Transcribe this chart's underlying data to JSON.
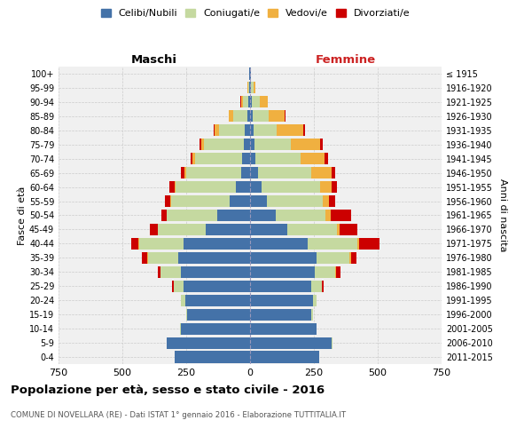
{
  "age_groups": [
    "0-4",
    "5-9",
    "10-14",
    "15-19",
    "20-24",
    "25-29",
    "30-34",
    "35-39",
    "40-44",
    "45-49",
    "50-54",
    "55-59",
    "60-64",
    "65-69",
    "70-74",
    "75-79",
    "80-84",
    "85-89",
    "90-94",
    "95-99",
    "100+"
  ],
  "birth_years": [
    "2011-2015",
    "2006-2010",
    "2001-2005",
    "1996-2000",
    "1991-1995",
    "1986-1990",
    "1981-1985",
    "1976-1980",
    "1971-1975",
    "1966-1970",
    "1961-1965",
    "1956-1960",
    "1951-1955",
    "1946-1950",
    "1941-1945",
    "1936-1940",
    "1931-1935",
    "1926-1930",
    "1921-1925",
    "1916-1920",
    "≤ 1915"
  ],
  "male": {
    "celibi": [
      295,
      325,
      270,
      245,
      255,
      260,
      270,
      280,
      260,
      175,
      130,
      80,
      55,
      35,
      30,
      25,
      20,
      12,
      8,
      3,
      2
    ],
    "coniugati": [
      1,
      2,
      3,
      5,
      15,
      40,
      80,
      120,
      175,
      185,
      195,
      230,
      235,
      215,
      185,
      155,
      100,
      55,
      20,
      5,
      2
    ],
    "vedovi": [
      0,
      0,
      0,
      0,
      0,
      0,
      1,
      2,
      2,
      2,
      3,
      3,
      5,
      8,
      10,
      12,
      18,
      15,
      8,
      2,
      0
    ],
    "divorziati": [
      0,
      0,
      0,
      0,
      2,
      5,
      10,
      20,
      30,
      30,
      20,
      22,
      20,
      12,
      8,
      5,
      3,
      2,
      1,
      0,
      0
    ]
  },
  "female": {
    "nubili": [
      270,
      320,
      260,
      240,
      245,
      240,
      255,
      260,
      225,
      145,
      100,
      65,
      45,
      30,
      22,
      18,
      15,
      12,
      8,
      3,
      2
    ],
    "coniugate": [
      1,
      2,
      2,
      5,
      15,
      40,
      80,
      130,
      195,
      195,
      195,
      220,
      230,
      210,
      175,
      140,
      90,
      60,
      30,
      10,
      2
    ],
    "vedove": [
      0,
      0,
      0,
      0,
      0,
      2,
      3,
      5,
      8,
      10,
      20,
      25,
      45,
      80,
      95,
      115,
      105,
      65,
      30,
      8,
      1
    ],
    "divorziate": [
      0,
      0,
      0,
      0,
      2,
      5,
      15,
      20,
      80,
      70,
      80,
      25,
      22,
      15,
      12,
      10,
      5,
      2,
      1,
      0,
      0
    ]
  },
  "colors": {
    "celibi": "#4472a8",
    "coniugati": "#c5d9a0",
    "vedovi": "#f0b040",
    "divorziati": "#cc0000"
  },
  "xlim": 750,
  "title": "Popolazione per età, sesso e stato civile - 2016",
  "subtitle": "COMUNE DI NOVELLARA (RE) - Dati ISTAT 1° gennaio 2016 - Elaborazione TUTTITALIA.IT",
  "maschi_label": "Maschi",
  "femmine_label": "Femmine",
  "ylabel_left": "Fasce di età",
  "ylabel_right": "Anni di nascita",
  "legend_labels": [
    "Celibi/Nubili",
    "Coniugati/e",
    "Vedovi/e",
    "Divorziati/e"
  ]
}
